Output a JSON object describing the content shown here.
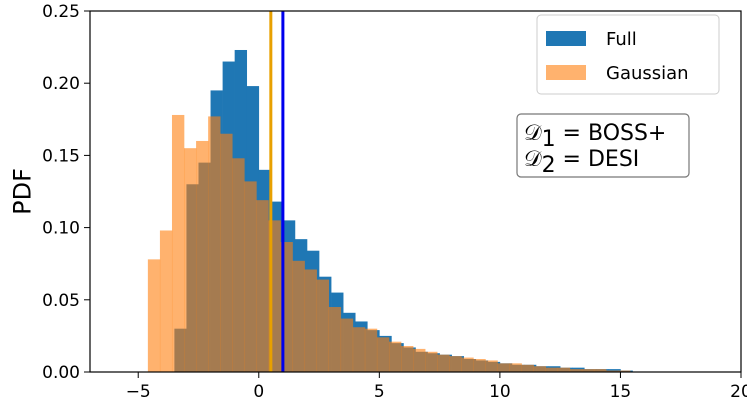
{
  "chart_data": {
    "type": "histogram",
    "xlim": [
      -7,
      20
    ],
    "ylim": [
      0,
      0.25
    ],
    "xlabel": "",
    "ylabel": "PDF",
    "grid": false,
    "legend_placement": "top-right",
    "x_ticks": [
      -5,
      0,
      5,
      10,
      15,
      20
    ],
    "x_tick_labels": [
      "−5",
      "0",
      "5",
      "10",
      "15",
      "20"
    ],
    "y_ticks": [
      0,
      0.05,
      0.1,
      0.15,
      0.2,
      0.25
    ],
    "y_tick_labels": [
      "0.00",
      "0.05",
      "0.10",
      "0.15",
      "0.20",
      "0.25"
    ],
    "series": [
      {
        "name": "Full",
        "color": "#1f77b4",
        "opacity": 1.0,
        "bins_left": [
          -3.5,
          -3.0,
          -2.5,
          -2.0,
          -1.5,
          -1.0,
          -0.5,
          0.0,
          0.5,
          1.0,
          1.5,
          2.0,
          2.5,
          3.0,
          3.5,
          4.0,
          4.5,
          5.0,
          5.5,
          6.0,
          6.5,
          7.0,
          7.5,
          8.0,
          8.5,
          9.0,
          9.5,
          10.0,
          10.5,
          11.0,
          11.5,
          12.0,
          12.5,
          13.0,
          13.5,
          14.0,
          14.5,
          15.0
        ],
        "bin_width": 0.5,
        "values": [
          0.03,
          0.13,
          0.145,
          0.195,
          0.215,
          0.223,
          0.198,
          0.14,
          0.118,
          0.105,
          0.092,
          0.084,
          0.066,
          0.055,
          0.041,
          0.035,
          0.029,
          0.025,
          0.02,
          0.017,
          0.014,
          0.013,
          0.012,
          0.011,
          0.009,
          0.008,
          0.007,
          0.006,
          0.005,
          0.005,
          0.004,
          0.004,
          0.003,
          0.003,
          0.002,
          0.002,
          0.002,
          0.001
        ]
      },
      {
        "name": "Gaussian",
        "color": "#ff7f0e",
        "opacity": 0.6,
        "bins_left": [
          -4.6,
          -4.1,
          -3.6,
          -3.1,
          -2.6,
          -2.1,
          -1.6,
          -1.1,
          -0.6,
          -0.1,
          0.4,
          0.9,
          1.4,
          1.9,
          2.4,
          2.9,
          3.4,
          3.9,
          4.4,
          4.9,
          5.4,
          5.9,
          6.4,
          6.9,
          7.4,
          7.9,
          8.4,
          8.9,
          9.4,
          9.9,
          10.4,
          10.9,
          11.4,
          11.9,
          12.4,
          12.9,
          13.4,
          13.9,
          14.4,
          14.9
        ],
        "bin_width": 0.5,
        "values": [
          0.078,
          0.098,
          0.178,
          0.155,
          0.16,
          0.177,
          0.165,
          0.148,
          0.132,
          0.119,
          0.105,
          0.09,
          0.077,
          0.071,
          0.064,
          0.045,
          0.037,
          0.031,
          0.03,
          0.024,
          0.021,
          0.018,
          0.016,
          0.014,
          0.012,
          0.011,
          0.01,
          0.009,
          0.008,
          0.006,
          0.006,
          0.005,
          0.004,
          0.003,
          0.003,
          0.002,
          0.002,
          0.002,
          0.001,
          0.001
        ]
      }
    ],
    "vlines": [
      {
        "name": "gaussian-mean",
        "x": 0.5,
        "color": "#e8a000"
      },
      {
        "name": "full-mean",
        "x": 1.0,
        "color": "#0000ee"
      }
    ],
    "annotation": {
      "line1_symbol": "𝒟",
      "line1_sub": "1",
      "line1_rest": " = BOSS+",
      "line2_symbol": "𝒟",
      "line2_sub": "2",
      "line2_rest": " = DESI"
    }
  }
}
